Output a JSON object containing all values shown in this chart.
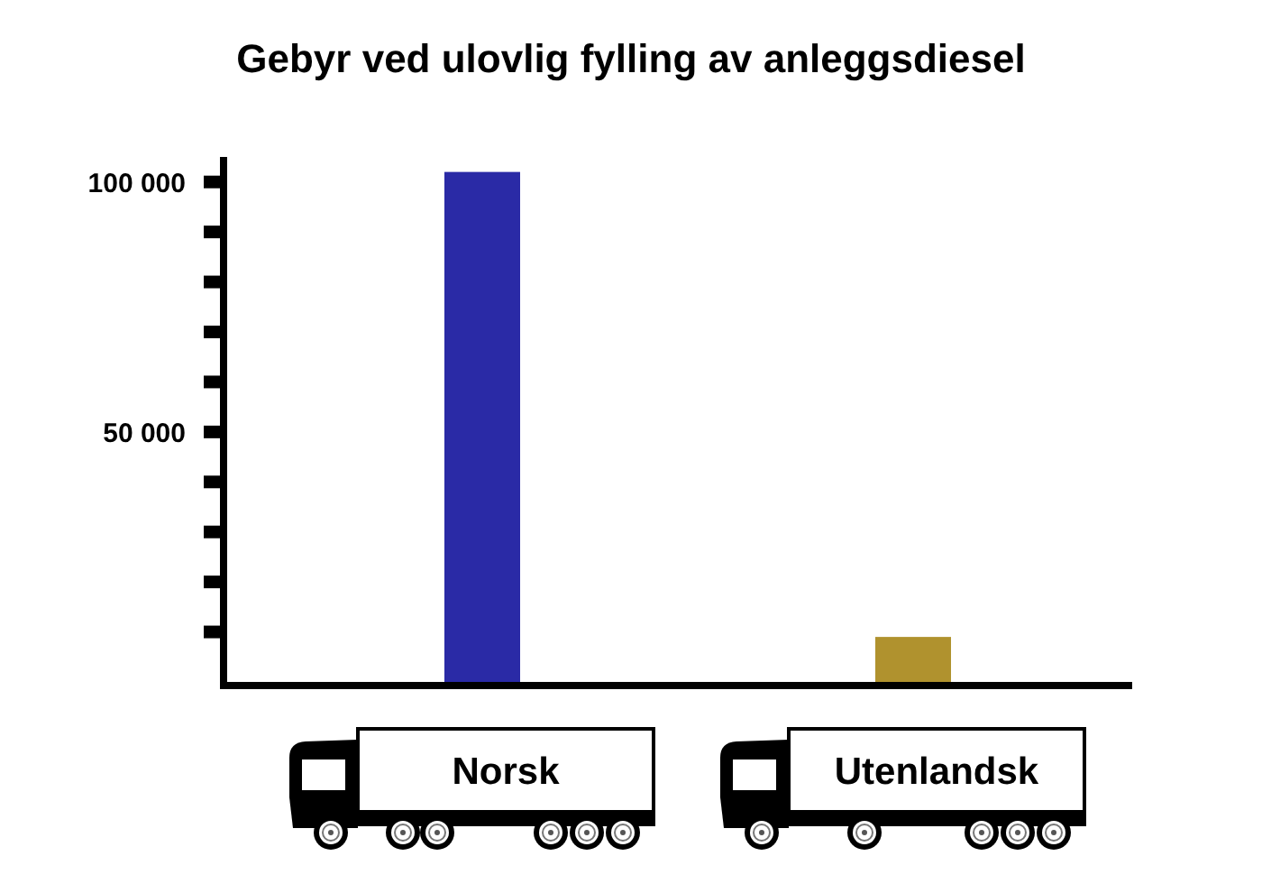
{
  "chart_data": {
    "type": "bar",
    "title": "Gebyr ved ulovlig fylling av anleggsdiesel",
    "categories": [
      "Norsk",
      "Utenlandsk"
    ],
    "values": [
      102000,
      9000
    ],
    "colors": [
      "#2a2aa6",
      "#b0922e"
    ],
    "ylim": [
      0,
      105000
    ],
    "yticks": [
      {
        "value": 10000,
        "label": null
      },
      {
        "value": 20000,
        "label": null
      },
      {
        "value": 30000,
        "label": null
      },
      {
        "value": 40000,
        "label": null
      },
      {
        "value": 50000,
        "label": "50 000"
      },
      {
        "value": 60000,
        "label": null
      },
      {
        "value": 70000,
        "label": null
      },
      {
        "value": 80000,
        "label": null
      },
      {
        "value": 90000,
        "label": null
      },
      {
        "value": 100000,
        "label": "100 000"
      }
    ]
  }
}
